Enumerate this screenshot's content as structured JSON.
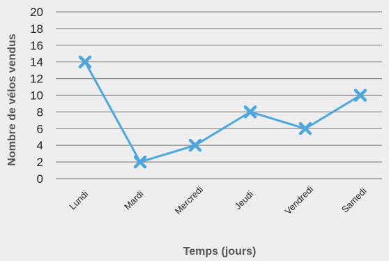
{
  "chart_data": {
    "type": "line",
    "title": "",
    "xlabel": "Temps (jours)",
    "ylabel": "Nombre de vélos vendus",
    "categories": [
      "Lundi",
      "Mardi",
      "Mercredi",
      "Jeudi",
      "Vendredi",
      "Samedi"
    ],
    "series": [
      {
        "values": [
          14,
          2,
          4,
          8,
          6,
          10
        ]
      }
    ],
    "ylim": [
      0,
      20
    ],
    "yticks": [
      0,
      2,
      4,
      6,
      8,
      10,
      12,
      14,
      16,
      18,
      20
    ],
    "grid": true,
    "marker": "x",
    "colors": {
      "series": "#4aa7e0",
      "grid": "#8a8a8a",
      "background": "#eeeeee"
    }
  }
}
